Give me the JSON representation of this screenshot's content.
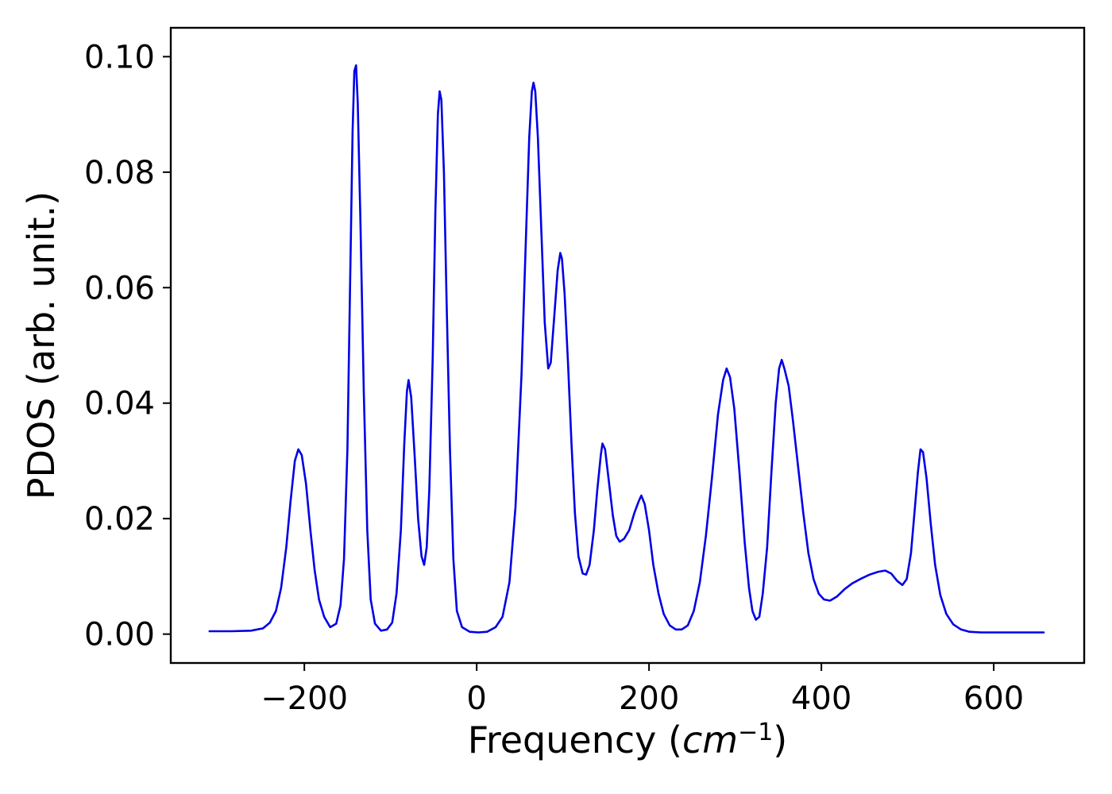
{
  "chart_data": {
    "type": "line",
    "title": "",
    "xlabel": "Frequency (cm^-1)",
    "xlabel_parts": {
      "prefix": "Frequency (",
      "italic": "cm",
      "superscript": "−1",
      "suffix": ")"
    },
    "ylabel": "PDOS (arb. unit.)",
    "xlim": [
      -355,
      705
    ],
    "ylim": [
      -0.005,
      0.105
    ],
    "x_ticks": [
      -200,
      0,
      200,
      400,
      600
    ],
    "x_tick_labels": [
      "−200",
      "0",
      "200",
      "400",
      "600"
    ],
    "y_ticks": [
      0.0,
      0.02,
      0.04,
      0.06,
      0.08,
      0.1
    ],
    "y_tick_labels": [
      "0.00",
      "0.02",
      "0.04",
      "0.06",
      "0.08",
      "0.10"
    ],
    "grid": false,
    "legend": null,
    "background": "#ffffff",
    "line_color": "#0000e6",
    "frame_color": "#000000",
    "peaks": [
      {
        "x": -207,
        "y": 0.032
      },
      {
        "x": -140,
        "y": 0.0985
      },
      {
        "x": -79,
        "y": 0.044
      },
      {
        "x": -43,
        "y": 0.094
      },
      {
        "x": 66,
        "y": 0.0955
      },
      {
        "x": 97,
        "y": 0.066
      },
      {
        "x": 146,
        "y": 0.033
      },
      {
        "x": 191,
        "y": 0.024
      },
      {
        "x": 290,
        "y": 0.046
      },
      {
        "x": 354,
        "y": 0.0475
      },
      {
        "x": 474,
        "y": 0.011
      },
      {
        "x": 515,
        "y": 0.032
      }
    ],
    "series": [
      {
        "name": "PDOS",
        "points": [
          [
            -310,
            0.0005
          ],
          [
            -285,
            0.0005
          ],
          [
            -262,
            0.0006
          ],
          [
            -248,
            0.001
          ],
          [
            -240,
            0.002
          ],
          [
            -233,
            0.004
          ],
          [
            -227,
            0.008
          ],
          [
            -221,
            0.015
          ],
          [
            -216,
            0.023
          ],
          [
            -211,
            0.03
          ],
          [
            -207,
            0.032
          ],
          [
            -203,
            0.031
          ],
          [
            -198,
            0.026
          ],
          [
            -193,
            0.018
          ],
          [
            -188,
            0.011
          ],
          [
            -183,
            0.006
          ],
          [
            -177,
            0.003
          ],
          [
            -170,
            0.0012
          ],
          [
            -163,
            0.0018
          ],
          [
            -158,
            0.005
          ],
          [
            -154,
            0.013
          ],
          [
            -150,
            0.032
          ],
          [
            -147,
            0.06
          ],
          [
            -144,
            0.087
          ],
          [
            -142,
            0.0975
          ],
          [
            -140,
            0.0985
          ],
          [
            -138,
            0.092
          ],
          [
            -135,
            0.072
          ],
          [
            -131,
            0.042
          ],
          [
            -127,
            0.018
          ],
          [
            -123,
            0.006
          ],
          [
            -118,
            0.0018
          ],
          [
            -111,
            0.0006
          ],
          [
            -104,
            0.0008
          ],
          [
            -98,
            0.002
          ],
          [
            -93,
            0.007
          ],
          [
            -88,
            0.018
          ],
          [
            -84,
            0.033
          ],
          [
            -81,
            0.042
          ],
          [
            -79,
            0.044
          ],
          [
            -76,
            0.041
          ],
          [
            -72,
            0.031
          ],
          [
            -68,
            0.02
          ],
          [
            -64,
            0.0135
          ],
          [
            -61,
            0.012
          ],
          [
            -58,
            0.015
          ],
          [
            -55,
            0.025
          ],
          [
            -51,
            0.048
          ],
          [
            -48,
            0.073
          ],
          [
            -45,
            0.09
          ],
          [
            -43,
            0.094
          ],
          [
            -41,
            0.0925
          ],
          [
            -38,
            0.08
          ],
          [
            -35,
            0.058
          ],
          [
            -31,
            0.032
          ],
          [
            -27,
            0.013
          ],
          [
            -23,
            0.004
          ],
          [
            -17,
            0.0012
          ],
          [
            -8,
            0.0004
          ],
          [
            2,
            0.0003
          ],
          [
            12,
            0.0004
          ],
          [
            22,
            0.0012
          ],
          [
            30,
            0.003
          ],
          [
            38,
            0.009
          ],
          [
            45,
            0.022
          ],
          [
            52,
            0.045
          ],
          [
            57,
            0.068
          ],
          [
            61,
            0.086
          ],
          [
            64,
            0.094
          ],
          [
            66,
            0.0955
          ],
          [
            68,
            0.094
          ],
          [
            71,
            0.086
          ],
          [
            75,
            0.07
          ],
          [
            79,
            0.054
          ],
          [
            83,
            0.046
          ],
          [
            86,
            0.047
          ],
          [
            90,
            0.055
          ],
          [
            94,
            0.063
          ],
          [
            97,
            0.066
          ],
          [
            99,
            0.065
          ],
          [
            102,
            0.059
          ],
          [
            106,
            0.047
          ],
          [
            110,
            0.033
          ],
          [
            114,
            0.021
          ],
          [
            118,
            0.0135
          ],
          [
            123,
            0.0105
          ],
          [
            127,
            0.0103
          ],
          [
            131,
            0.012
          ],
          [
            136,
            0.018
          ],
          [
            140,
            0.025
          ],
          [
            144,
            0.031
          ],
          [
            146,
            0.033
          ],
          [
            149,
            0.032
          ],
          [
            153,
            0.027
          ],
          [
            158,
            0.0205
          ],
          [
            162,
            0.017
          ],
          [
            166,
            0.016
          ],
          [
            171,
            0.0165
          ],
          [
            177,
            0.018
          ],
          [
            183,
            0.021
          ],
          [
            188,
            0.023
          ],
          [
            191,
            0.024
          ],
          [
            195,
            0.0225
          ],
          [
            200,
            0.018
          ],
          [
            205,
            0.012
          ],
          [
            211,
            0.007
          ],
          [
            217,
            0.0035
          ],
          [
            224,
            0.0015
          ],
          [
            231,
            0.0008
          ],
          [
            238,
            0.0008
          ],
          [
            245,
            0.0015
          ],
          [
            252,
            0.004
          ],
          [
            259,
            0.009
          ],
          [
            266,
            0.017
          ],
          [
            273,
            0.027
          ],
          [
            280,
            0.038
          ],
          [
            286,
            0.044
          ],
          [
            290,
            0.046
          ],
          [
            294,
            0.0445
          ],
          [
            299,
            0.039
          ],
          [
            305,
            0.028
          ],
          [
            311,
            0.016
          ],
          [
            316,
            0.008
          ],
          [
            320,
            0.004
          ],
          [
            324,
            0.0025
          ],
          [
            328,
            0.003
          ],
          [
            332,
            0.007
          ],
          [
            337,
            0.015
          ],
          [
            342,
            0.028
          ],
          [
            347,
            0.04
          ],
          [
            351,
            0.046
          ],
          [
            354,
            0.0475
          ],
          [
            357,
            0.046
          ],
          [
            362,
            0.043
          ],
          [
            367,
            0.037
          ],
          [
            373,
            0.029
          ],
          [
            379,
            0.021
          ],
          [
            385,
            0.014
          ],
          [
            391,
            0.0095
          ],
          [
            397,
            0.007
          ],
          [
            403,
            0.006
          ],
          [
            410,
            0.0058
          ],
          [
            418,
            0.0065
          ],
          [
            427,
            0.0078
          ],
          [
            436,
            0.0088
          ],
          [
            446,
            0.0096
          ],
          [
            456,
            0.0103
          ],
          [
            466,
            0.0108
          ],
          [
            474,
            0.011
          ],
          [
            481,
            0.0105
          ],
          [
            488,
            0.0092
          ],
          [
            494,
            0.0085
          ],
          [
            499,
            0.0095
          ],
          [
            504,
            0.014
          ],
          [
            508,
            0.021
          ],
          [
            512,
            0.028
          ],
          [
            515,
            0.032
          ],
          [
            518,
            0.0315
          ],
          [
            522,
            0.027
          ],
          [
            527,
            0.019
          ],
          [
            532,
            0.012
          ],
          [
            538,
            0.0068
          ],
          [
            545,
            0.0035
          ],
          [
            553,
            0.0017
          ],
          [
            562,
            0.0008
          ],
          [
            572,
            0.0004
          ],
          [
            585,
            0.0003
          ],
          [
            600,
            0.0003
          ],
          [
            620,
            0.0003
          ],
          [
            640,
            0.0003
          ],
          [
            658,
            0.0003
          ]
        ]
      }
    ]
  }
}
